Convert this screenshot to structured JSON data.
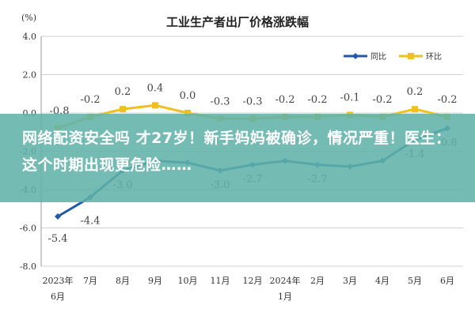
{
  "chart_data": {
    "type": "line",
    "title": "工业生产者出厂价格涨跌幅",
    "unit_label": "(%)",
    "categories": [
      "2023年\n6月",
      "7月",
      "8月",
      "9月",
      "10月",
      "11月",
      "12月",
      "2024年\n1月",
      "2月",
      "3月",
      "4月",
      "5月",
      "6月"
    ],
    "yticks": [
      "4.0",
      "2.0",
      "0.0",
      "-2.0",
      "-4.0",
      "-6.0",
      "-8.0"
    ],
    "ylim": [
      -8,
      4
    ],
    "series": [
      {
        "name": "同比",
        "color": "#1f5aa8",
        "values": [
          -5.4,
          -4.4,
          -3.0,
          -2.5,
          -2.6,
          -3.0,
          -2.7,
          -2.5,
          -2.7,
          -2.8,
          -2.5,
          -1.4,
          -0.8
        ],
        "labels": [
          "-5.4",
          "-4.4",
          "-3.0",
          "",
          "",
          "-3.0",
          "-2.7",
          "",
          "-2.7",
          "",
          "",
          "-1.4",
          "-0.8"
        ]
      },
      {
        "name": "环比",
        "color": "#f2c01e",
        "values": [
          -0.8,
          -0.2,
          0.2,
          0.4,
          0.0,
          -0.3,
          -0.3,
          -0.2,
          -0.2,
          -0.1,
          -0.2,
          0.2,
          -0.2
        ],
        "labels": [
          "-0.8",
          "-0.2",
          "0.2",
          "0.4",
          "0.0",
          "-0.3",
          "-0.3",
          "-0.2",
          "-0.2",
          "-0.1",
          "-0.2",
          "0.2",
          "-0.2"
        ]
      }
    ],
    "grid": true,
    "legend_position": "top-right"
  },
  "overlay": {
    "text": "网络配资安全吗 才27岁！新手妈妈被确诊，情况严重！医生：这个时期出现更危险……"
  }
}
